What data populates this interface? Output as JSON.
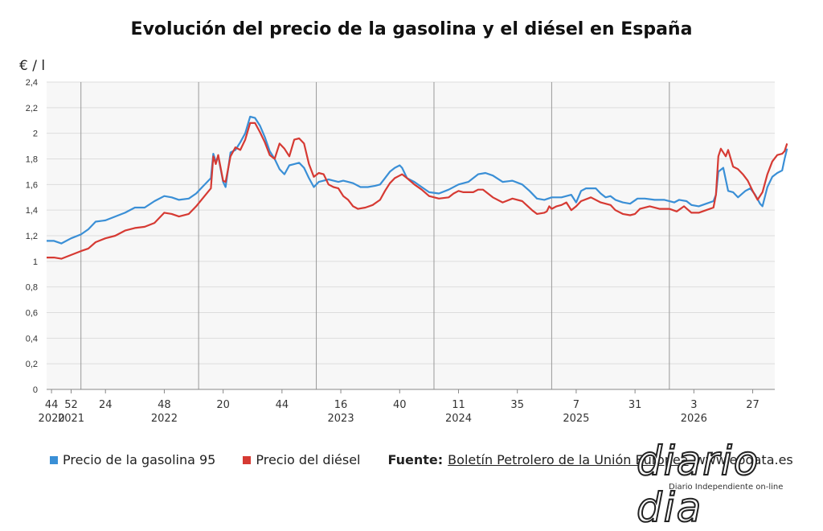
{
  "chart_data": {
    "type": "line",
    "title": "Evolución del precio de la gasolina y el diésel en España",
    "ylabel": "€ / l",
    "xlabel": "",
    "ylim": [
      0,
      2.4
    ],
    "yticks": [
      "0",
      "0,2",
      "0,4",
      "0,6",
      "0,8",
      "1",
      "1,2",
      "1,4",
      "1,6",
      "1,8",
      "2",
      "2,2",
      "2,4"
    ],
    "x_range": [
      0,
      297
    ],
    "xticks": [
      {
        "x": 2,
        "label": "44",
        "year": "2020"
      },
      {
        "x": 10,
        "label": "52",
        "year": "2021"
      },
      {
        "x": 24,
        "label": "24",
        "year": ""
      },
      {
        "x": 48,
        "label": "48",
        "year": "2022"
      },
      {
        "x": 72,
        "label": "20",
        "year": ""
      },
      {
        "x": 96,
        "label": "44",
        "year": ""
      },
      {
        "x": 120,
        "label": "16",
        "year": "2023"
      },
      {
        "x": 144,
        "label": "40",
        "year": ""
      },
      {
        "x": 168,
        "label": "11",
        "year": "2024"
      },
      {
        "x": 192,
        "label": "35",
        "year": ""
      },
      {
        "x": 216,
        "label": "7",
        "year": "2025"
      },
      {
        "x": 240,
        "label": "31",
        "year": ""
      },
      {
        "x": 264,
        "label": "3",
        "year": "2026"
      },
      {
        "x": 288,
        "label": "27",
        "year": ""
      }
    ],
    "year_boundaries": [
      14,
      62,
      110,
      158,
      206,
      254
    ],
    "grid": true,
    "legend_position": "bottom-left",
    "series": [
      {
        "name": "Precio de la gasolina 95",
        "color": "#3a8fd6",
        "points": [
          [
            0,
            1.16
          ],
          [
            3,
            1.16
          ],
          [
            6,
            1.14
          ],
          [
            10,
            1.18
          ],
          [
            14,
            1.21
          ],
          [
            17,
            1.25
          ],
          [
            20,
            1.31
          ],
          [
            24,
            1.32
          ],
          [
            28,
            1.35
          ],
          [
            32,
            1.38
          ],
          [
            36,
            1.42
          ],
          [
            40,
            1.42
          ],
          [
            44,
            1.47
          ],
          [
            48,
            1.51
          ],
          [
            51,
            1.5
          ],
          [
            54,
            1.48
          ],
          [
            58,
            1.49
          ],
          [
            61,
            1.53
          ],
          [
            64,
            1.59
          ],
          [
            67,
            1.65
          ],
          [
            68,
            1.84
          ],
          [
            69,
            1.78
          ],
          [
            70,
            1.82
          ],
          [
            72,
            1.62
          ],
          [
            73,
            1.58
          ],
          [
            75,
            1.85
          ],
          [
            77,
            1.87
          ],
          [
            79,
            1.93
          ],
          [
            81,
            2.0
          ],
          [
            83,
            2.13
          ],
          [
            85,
            2.12
          ],
          [
            87,
            2.06
          ],
          [
            89,
            1.97
          ],
          [
            91,
            1.86
          ],
          [
            93,
            1.8
          ],
          [
            95,
            1.72
          ],
          [
            97,
            1.68
          ],
          [
            99,
            1.75
          ],
          [
            101,
            1.76
          ],
          [
            103,
            1.77
          ],
          [
            105,
            1.73
          ],
          [
            107,
            1.65
          ],
          [
            109,
            1.58
          ],
          [
            111,
            1.62
          ],
          [
            113,
            1.63
          ],
          [
            115,
            1.64
          ],
          [
            117,
            1.63
          ],
          [
            119,
            1.62
          ],
          [
            121,
            1.63
          ],
          [
            123,
            1.62
          ],
          [
            125,
            1.61
          ],
          [
            128,
            1.58
          ],
          [
            131,
            1.58
          ],
          [
            134,
            1.59
          ],
          [
            136,
            1.6
          ],
          [
            138,
            1.65
          ],
          [
            140,
            1.7
          ],
          [
            142,
            1.73
          ],
          [
            144,
            1.75
          ],
          [
            145,
            1.73
          ],
          [
            147,
            1.65
          ],
          [
            150,
            1.62
          ],
          [
            153,
            1.58
          ],
          [
            156,
            1.54
          ],
          [
            160,
            1.53
          ],
          [
            164,
            1.56
          ],
          [
            168,
            1.6
          ],
          [
            172,
            1.62
          ],
          [
            176,
            1.68
          ],
          [
            179,
            1.69
          ],
          [
            182,
            1.67
          ],
          [
            186,
            1.62
          ],
          [
            190,
            1.63
          ],
          [
            194,
            1.6
          ],
          [
            197,
            1.55
          ],
          [
            200,
            1.49
          ],
          [
            203,
            1.48
          ],
          [
            206,
            1.5
          ],
          [
            210,
            1.5
          ],
          [
            214,
            1.52
          ],
          [
            216,
            1.46
          ],
          [
            218,
            1.55
          ],
          [
            220,
            1.57
          ],
          [
            224,
            1.57
          ],
          [
            226,
            1.53
          ],
          [
            228,
            1.5
          ],
          [
            230,
            1.51
          ],
          [
            232,
            1.48
          ],
          [
            235,
            1.46
          ],
          [
            238,
            1.45
          ],
          [
            241,
            1.49
          ],
          [
            244,
            1.49
          ],
          [
            248,
            1.48
          ],
          [
            252,
            1.48
          ],
          [
            256,
            1.46
          ],
          [
            258,
            1.48
          ],
          [
            261,
            1.47
          ],
          [
            263,
            1.44
          ],
          [
            266,
            1.43
          ],
          [
            269,
            1.45
          ],
          [
            272,
            1.47
          ],
          [
            273,
            1.52
          ],
          [
            274,
            1.7
          ],
          [
            276,
            1.73
          ],
          [
            278,
            1.55
          ],
          [
            280,
            1.54
          ],
          [
            282,
            1.5
          ],
          [
            285,
            1.55
          ],
          [
            287,
            1.57
          ],
          [
            289,
            1.52
          ],
          [
            291,
            1.45
          ],
          [
            292,
            1.43
          ],
          [
            294,
            1.58
          ],
          [
            296,
            1.66
          ],
          [
            298,
            1.69
          ],
          [
            300,
            1.71
          ],
          [
            301,
            1.8
          ],
          [
            302,
            1.88
          ]
        ]
      },
      {
        "name": "Precio del diésel",
        "color": "#d63a33",
        "points": [
          [
            0,
            1.03
          ],
          [
            3,
            1.03
          ],
          [
            6,
            1.02
          ],
          [
            10,
            1.05
          ],
          [
            14,
            1.08
          ],
          [
            17,
            1.1
          ],
          [
            20,
            1.15
          ],
          [
            24,
            1.18
          ],
          [
            28,
            1.2
          ],
          [
            32,
            1.24
          ],
          [
            36,
            1.26
          ],
          [
            40,
            1.27
          ],
          [
            44,
            1.3
          ],
          [
            48,
            1.38
          ],
          [
            51,
            1.37
          ],
          [
            54,
            1.35
          ],
          [
            58,
            1.37
          ],
          [
            61,
            1.43
          ],
          [
            64,
            1.5
          ],
          [
            67,
            1.57
          ],
          [
            68,
            1.82
          ],
          [
            69,
            1.76
          ],
          [
            70,
            1.83
          ],
          [
            72,
            1.63
          ],
          [
            73,
            1.62
          ],
          [
            75,
            1.82
          ],
          [
            77,
            1.89
          ],
          [
            79,
            1.87
          ],
          [
            81,
            1.95
          ],
          [
            83,
            2.08
          ],
          [
            85,
            2.08
          ],
          [
            87,
            2.01
          ],
          [
            89,
            1.93
          ],
          [
            91,
            1.83
          ],
          [
            93,
            1.8
          ],
          [
            95,
            1.92
          ],
          [
            97,
            1.88
          ],
          [
            99,
            1.82
          ],
          [
            101,
            1.95
          ],
          [
            103,
            1.96
          ],
          [
            105,
            1.92
          ],
          [
            107,
            1.76
          ],
          [
            109,
            1.66
          ],
          [
            111,
            1.69
          ],
          [
            113,
            1.68
          ],
          [
            115,
            1.6
          ],
          [
            117,
            1.58
          ],
          [
            119,
            1.57
          ],
          [
            121,
            1.51
          ],
          [
            123,
            1.48
          ],
          [
            125,
            1.43
          ],
          [
            127,
            1.41
          ],
          [
            130,
            1.42
          ],
          [
            133,
            1.44
          ],
          [
            136,
            1.48
          ],
          [
            138,
            1.55
          ],
          [
            140,
            1.61
          ],
          [
            142,
            1.65
          ],
          [
            144,
            1.67
          ],
          [
            145,
            1.68
          ],
          [
            147,
            1.65
          ],
          [
            150,
            1.6
          ],
          [
            153,
            1.56
          ],
          [
            156,
            1.51
          ],
          [
            160,
            1.49
          ],
          [
            164,
            1.5
          ],
          [
            166,
            1.53
          ],
          [
            168,
            1.55
          ],
          [
            170,
            1.54
          ],
          [
            174,
            1.54
          ],
          [
            176,
            1.56
          ],
          [
            178,
            1.56
          ],
          [
            182,
            1.5
          ],
          [
            186,
            1.46
          ],
          [
            190,
            1.49
          ],
          [
            194,
            1.47
          ],
          [
            198,
            1.4
          ],
          [
            200,
            1.37
          ],
          [
            203,
            1.38
          ],
          [
            204,
            1.39
          ],
          [
            205,
            1.43
          ],
          [
            206,
            1.41
          ],
          [
            208,
            1.43
          ],
          [
            210,
            1.44
          ],
          [
            212,
            1.46
          ],
          [
            214,
            1.4
          ],
          [
            216,
            1.43
          ],
          [
            218,
            1.47
          ],
          [
            222,
            1.5
          ],
          [
            226,
            1.46
          ],
          [
            228,
            1.45
          ],
          [
            230,
            1.44
          ],
          [
            232,
            1.4
          ],
          [
            235,
            1.37
          ],
          [
            238,
            1.36
          ],
          [
            240,
            1.37
          ],
          [
            242,
            1.41
          ],
          [
            246,
            1.43
          ],
          [
            250,
            1.41
          ],
          [
            254,
            1.41
          ],
          [
            257,
            1.39
          ],
          [
            260,
            1.43
          ],
          [
            263,
            1.38
          ],
          [
            266,
            1.38
          ],
          [
            269,
            1.4
          ],
          [
            272,
            1.42
          ],
          [
            273,
            1.52
          ],
          [
            274,
            1.82
          ],
          [
            275,
            1.88
          ],
          [
            277,
            1.82
          ],
          [
            278,
            1.87
          ],
          [
            280,
            1.74
          ],
          [
            282,
            1.72
          ],
          [
            284,
            1.68
          ],
          [
            286,
            1.63
          ],
          [
            288,
            1.55
          ],
          [
            290,
            1.48
          ],
          [
            292,
            1.54
          ],
          [
            294,
            1.68
          ],
          [
            296,
            1.78
          ],
          [
            298,
            1.83
          ],
          [
            300,
            1.84
          ],
          [
            301,
            1.86
          ],
          [
            302,
            1.92
          ]
        ]
      }
    ]
  },
  "legend": {
    "items": [
      {
        "label": "Precio de la gasolina 95",
        "color": "#3a8fd6"
      },
      {
        "label": "Precio del diésel",
        "color": "#d63a33"
      }
    ],
    "source_label": "Fuente:",
    "source_text": "Boletín Petrolero de la Unión Europea",
    "source_site": "www.epdata.es"
  },
  "watermark": {
    "logo_text": "diario dia",
    "tagline": "Diario Independiente on-line"
  }
}
